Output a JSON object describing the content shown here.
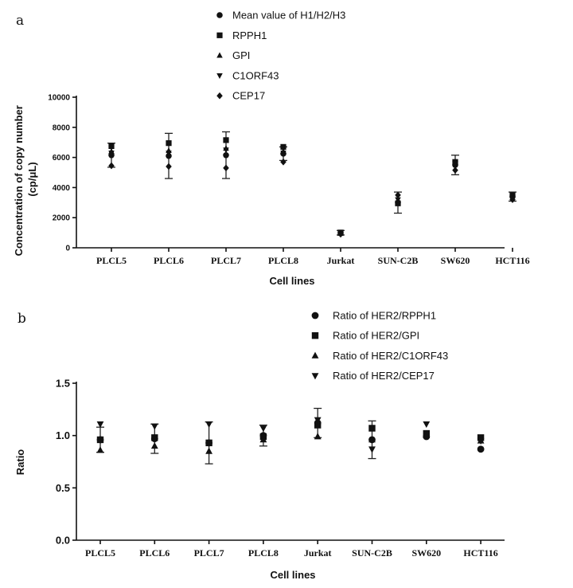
{
  "chart_data": [
    {
      "panel": "a",
      "type": "scatter",
      "title": "",
      "xlabel": "Cell lines",
      "ylabel": "Concentration of copy number (cp/μL)",
      "ylabel_lines": [
        "Concentration of copy number",
        "(cp/μL)"
      ],
      "ylim": [
        0,
        10000
      ],
      "yticks": [
        "0",
        "2000",
        "4000",
        "6000",
        "8000",
        "10000"
      ],
      "categories": [
        "PLCL5",
        "PLCL6",
        "PLCL7",
        "PLCL8",
        "Jurkat",
        "SUN-C2B",
        "SW620",
        "HCT116"
      ],
      "legend": [
        "Mean value of H1/H2/H3",
        "RPPH1",
        "GPI",
        "C1ORF43",
        "CEP17"
      ],
      "legend_position": "top-center",
      "series": [
        {
          "name": "Mean value of H1/H2/H3",
          "marker": "circle",
          "values": [
            6150,
            6100,
            6150,
            6250,
            1000,
            3000,
            5500,
            3400
          ],
          "error": [
            800,
            1500,
            1550,
            450,
            150,
            700,
            650,
            300
          ]
        },
        {
          "name": "RPPH1",
          "marker": "square",
          "values": [
            6750,
            6950,
            7150,
            6700,
            1000,
            2950,
            5700,
            3500
          ]
        },
        {
          "name": "GPI",
          "marker": "triangle-up",
          "values": [
            6400,
            6450,
            6600,
            6400,
            950,
            3000,
            5650,
            3450
          ]
        },
        {
          "name": "C1ORF43",
          "marker": "triangle-down",
          "values": [
            6300,
            6300,
            6500,
            6300,
            1050,
            3200,
            5600,
            3300
          ]
        },
        {
          "name": "CEP17",
          "marker": "diamond",
          "values": [
            5450,
            5400,
            5300,
            5700,
            900,
            3500,
            5150,
            3200
          ]
        }
      ]
    },
    {
      "panel": "b",
      "type": "scatter",
      "title": "",
      "xlabel": "Cell lines",
      "ylabel": "Ratio",
      "ylim": [
        0,
        1.5
      ],
      "yticks": [
        "0.0",
        "0.5",
        "1.0",
        "1.5"
      ],
      "categories": [
        "PLCL5",
        "PLCL6",
        "PLCL7",
        "PLCL8",
        "Jurkat",
        "SUN-C2B",
        "SW620",
        "HCT116"
      ],
      "legend": [
        "Ratio of HER2/RPPH1",
        "Ratio of HER2/GPI",
        "Ratio of HER2/C1ORF43",
        "Ratio of HER2/CEP17"
      ],
      "legend_position": "top-right",
      "series": [
        {
          "name": "Ratio of HER2/RPPH1",
          "marker": "circle",
          "values": [
            0.96,
            0.97,
            0.93,
            1.0,
            1.12,
            0.96,
            0.99,
            0.87
          ],
          "error": [
            0.12,
            0.14,
            0.2,
            0.1,
            0.14,
            0.18,
            0.0,
            0.0
          ]
        },
        {
          "name": "Ratio of HER2/GPI",
          "marker": "square",
          "values": [
            0.96,
            0.98,
            0.93,
            0.99,
            1.1,
            1.07,
            1.02,
            0.98
          ]
        },
        {
          "name": "Ratio of HER2/C1ORF43",
          "marker": "triangle-up",
          "values": [
            0.86,
            0.9,
            0.85,
            0.96,
            0.99,
            0.96,
            1.0,
            0.95
          ]
        },
        {
          "name": "Ratio of HER2/CEP17",
          "marker": "triangle-down",
          "values": [
            1.11,
            1.09,
            1.11,
            1.07,
            1.15,
            0.87,
            1.11,
            0.95
          ]
        }
      ]
    }
  ],
  "panels": {
    "a": {
      "letter": "a"
    },
    "b": {
      "letter": "b"
    }
  }
}
